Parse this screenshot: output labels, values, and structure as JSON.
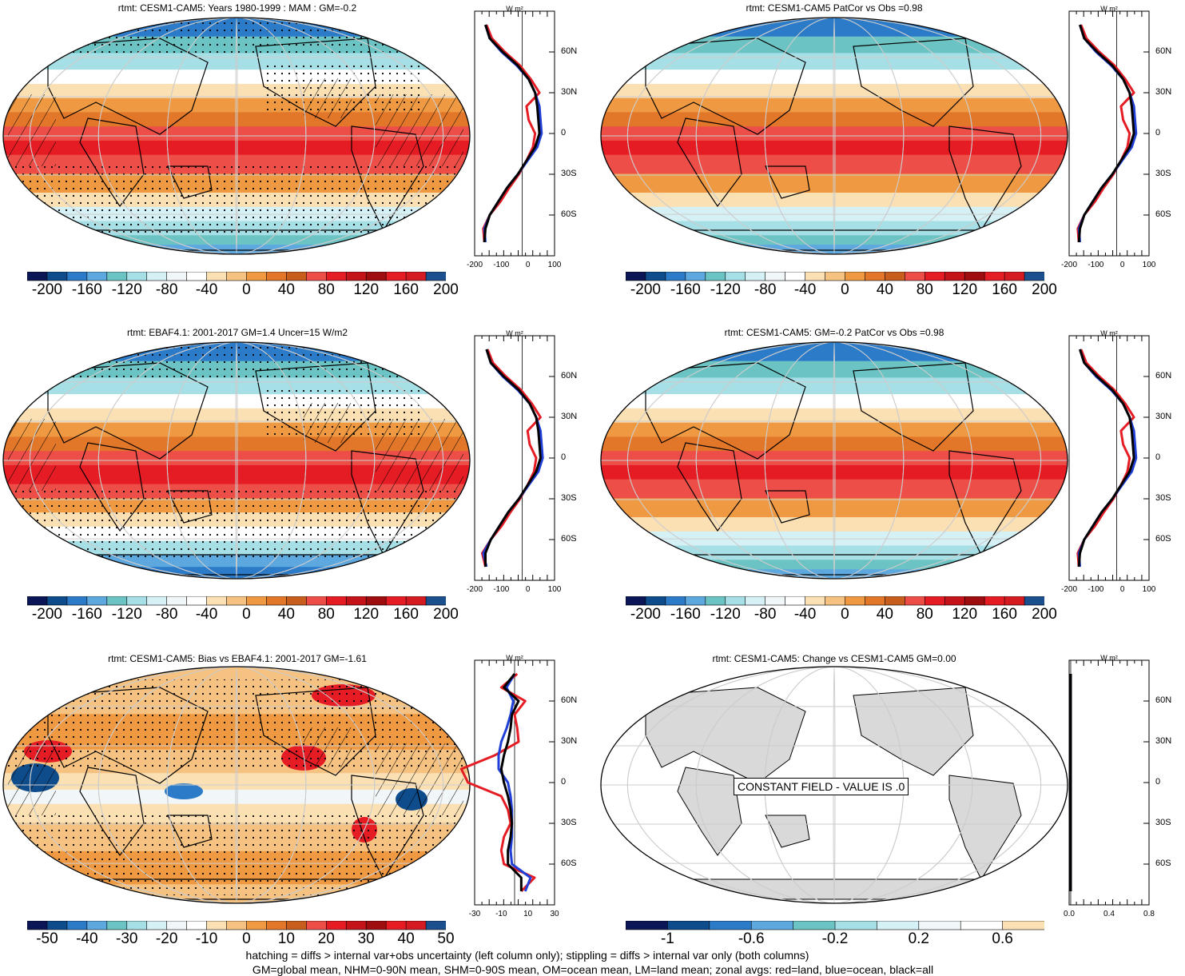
{
  "panels": [
    {
      "id": "p1",
      "title": "rtmt: CESM1-CAM5: Years 1980-1999 : MAM : GM=-0.2",
      "type": "model",
      "hatch": true,
      "stipple": true,
      "zonal_x_ticks": [
        "-200",
        "-100",
        "0",
        "100"
      ],
      "zonal_unit": "W m²"
    },
    {
      "id": "p2",
      "title": "rtmt: CESM1-CAM5 PatCor vs Obs =0.98",
      "type": "model",
      "hatch": false,
      "stipple": false,
      "zonal_x_ticks": [
        "-200",
        "-100",
        "0",
        "100"
      ],
      "zonal_unit": "W m²"
    },
    {
      "id": "p3",
      "title": "rtmt: EBAF4.1: 2001-2017 GM=1.4 Uncer=15 W/m2",
      "type": "obs",
      "hatch": true,
      "stipple": true,
      "zonal_x_ticks": [
        "-200",
        "-100",
        "0",
        "100"
      ],
      "zonal_unit": "W m²"
    },
    {
      "id": "p4",
      "title": "rtmt: CESM1-CAM5: GM=-0.2 PatCor vs Obs =0.98",
      "type": "model",
      "hatch": false,
      "stipple": false,
      "zonal_x_ticks": [
        "-200",
        "-100",
        "0",
        "100"
      ],
      "zonal_unit": "W m²"
    },
    {
      "id": "p5",
      "title": "rtmt: CESM1-CAM5: Bias vs EBAF4.1: 2001-2017 GM=-1.61",
      "type": "bias",
      "hatch": true,
      "stipple": true,
      "zonal_x_ticks": [
        "-30",
        "-10",
        "10",
        "30"
      ],
      "zonal_unit": "W m²"
    },
    {
      "id": "p6",
      "title": "rtmt: CESM1-CAM5: Change vs CESM1-CAM5 GM=0.00",
      "type": "constant",
      "hatch": false,
      "stipple": false,
      "zonal_x_ticks": [
        "0.0",
        "0.4",
        "0.8"
      ],
      "zonal_unit": "W m²",
      "constant_text": "CONSTANT FIELD - VALUE IS .0"
    }
  ],
  "lat_labels": [
    "60N",
    "30N",
    "0",
    "30S",
    "60S"
  ],
  "colorbars": {
    "main": {
      "labels": [
        "-200",
        "-160",
        "-120",
        "-80",
        "-40",
        "0",
        "40",
        "80",
        "120",
        "160",
        "200"
      ],
      "colors": [
        "#0b1656",
        "#0f4c8c",
        "#2b7bc9",
        "#5ea8e0",
        "#6cc3c3",
        "#a6dfe5",
        "#d6f1f6",
        "#f1f6f8",
        "#ffffff",
        "#fbe0b4",
        "#f6c281",
        "#ef9a43",
        "#e2772a",
        "#c85e1e",
        "#ee4e48",
        "#e51c24",
        "#c41419",
        "#9e0d0f",
        "#e51c24",
        "#d41b22",
        "#1c4f8e"
      ]
    },
    "bias": {
      "labels": [
        "-50",
        "-40",
        "-30",
        "-20",
        "-10",
        "0",
        "10",
        "20",
        "30",
        "40",
        "50"
      ],
      "colors": [
        "#0b1656",
        "#0f4c8c",
        "#2b7bc9",
        "#5ea8e0",
        "#6cc3c3",
        "#a6dfe5",
        "#d6f1f6",
        "#f1f6f8",
        "#ffffff",
        "#fbe0b4",
        "#f6c281",
        "#ef9a43",
        "#e2772a",
        "#c85e1e",
        "#ee4e48",
        "#e51c24",
        "#c41419",
        "#9e0d0f",
        "#e51c24",
        "#d41b22",
        "#1c4f8e"
      ]
    },
    "constant": {
      "labels": [
        "-1",
        "-0.6",
        "-0.2",
        "0.2",
        "0.6"
      ],
      "colors": [
        "#0b1656",
        "#0f4c8c",
        "#2b7bc9",
        "#5ea8e0",
        "#6cc3c3",
        "#a6dfe5",
        "#d6f1f6",
        "#f1f6f8",
        "#ffffff",
        "#fbe0b4"
      ]
    }
  },
  "footer": {
    "line1": "hatching = diffs > internal var+obs uncertainty (left column only); stippling = diffs > internal var only (both columns)",
    "line2": "GM=global mean, NHM=0-90N mean, SHM=0-90S mean, OM=ocean mean, LM=land mean; zonal avgs: red=land, blue=ocean, black=all"
  },
  "chart_data": [
    {
      "type": "heatmap",
      "title": "rtmt: CESM1-CAM5: Years 1980-1999 : MAM : GM=-0.2",
      "units": "W m-2",
      "range": [
        -200,
        200
      ],
      "zonal_lat": [
        80,
        70,
        60,
        50,
        40,
        30,
        20,
        10,
        0,
        -10,
        -20,
        -30,
        -40,
        -50,
        -60,
        -70,
        -80
      ],
      "zonal_all": [
        -170,
        -150,
        -90,
        -20,
        30,
        60,
        70,
        75,
        80,
        60,
        20,
        -20,
        -70,
        -110,
        -150,
        -170,
        -175
      ],
      "zonal_land": [
        -165,
        -140,
        -80,
        -10,
        40,
        80,
        20,
        30,
        60,
        50,
        20,
        -15,
        -60,
        -100,
        -150,
        -180,
        -175
      ],
      "zonal_ocean": [
        -170,
        -150,
        -95,
        -25,
        30,
        60,
        80,
        85,
        90,
        70,
        25,
        -20,
        -70,
        -110,
        -150,
        -175,
        -170
      ]
    },
    {
      "type": "heatmap",
      "title": "rtmt: CESM1-CAM5 PatCor vs Obs =0.98",
      "units": "W m-2",
      "range": [
        -200,
        200
      ],
      "zonal_lat": [
        80,
        70,
        60,
        50,
        40,
        30,
        20,
        10,
        0,
        -10,
        -20,
        -30,
        -40,
        -50,
        -60,
        -70,
        -80
      ],
      "zonal_all": [
        -170,
        -150,
        -90,
        -20,
        30,
        60,
        70,
        75,
        80,
        60,
        20,
        -20,
        -70,
        -110,
        -150,
        -170,
        -175
      ],
      "zonal_land": [
        -165,
        -140,
        -80,
        -10,
        40,
        80,
        20,
        30,
        60,
        50,
        20,
        -15,
        -60,
        -100,
        -150,
        -180,
        -175
      ],
      "zonal_ocean": [
        -170,
        -150,
        -95,
        -25,
        30,
        60,
        80,
        85,
        90,
        70,
        25,
        -20,
        -70,
        -110,
        -150,
        -175,
        -170
      ]
    },
    {
      "type": "heatmap",
      "title": "rtmt: EBAF4.1: 2001-2017 GM=1.4 Uncer=15 W/m2",
      "units": "W m-2",
      "range": [
        -200,
        200
      ],
      "zonal_lat": [
        80,
        70,
        60,
        50,
        40,
        30,
        20,
        10,
        0,
        -10,
        -20,
        -30,
        -40,
        -50,
        -60,
        -70,
        -80
      ],
      "zonal_all": [
        -165,
        -145,
        -85,
        -15,
        35,
        65,
        75,
        80,
        85,
        65,
        25,
        -15,
        -65,
        -105,
        -145,
        -170,
        -170
      ],
      "zonal_land": [
        -160,
        -135,
        -75,
        -5,
        45,
        85,
        25,
        35,
        65,
        55,
        25,
        -10,
        -55,
        -95,
        -145,
        -185,
        -170
      ],
      "zonal_ocean": [
        -165,
        -145,
        -90,
        -20,
        35,
        65,
        85,
        90,
        95,
        75,
        30,
        -15,
        -65,
        -105,
        -145,
        -180,
        -165
      ]
    },
    {
      "type": "heatmap",
      "title": "rtmt: CESM1-CAM5: GM=-0.2 PatCor vs Obs =0.98",
      "units": "W m-2",
      "range": [
        -200,
        200
      ],
      "zonal_lat": [
        80,
        70,
        60,
        50,
        40,
        30,
        20,
        10,
        0,
        -10,
        -20,
        -30,
        -40,
        -50,
        -60,
        -70,
        -80
      ],
      "zonal_all": [
        -170,
        -150,
        -90,
        -20,
        30,
        60,
        70,
        75,
        80,
        60,
        20,
        -20,
        -70,
        -110,
        -150,
        -170,
        -175
      ],
      "zonal_land": [
        -165,
        -140,
        -80,
        -10,
        40,
        80,
        20,
        30,
        60,
        50,
        20,
        -15,
        -60,
        -100,
        -150,
        -180,
        -175
      ],
      "zonal_ocean": [
        -170,
        -150,
        -95,
        -25,
        30,
        60,
        80,
        85,
        90,
        70,
        25,
        -20,
        -70,
        -110,
        -150,
        -175,
        -170
      ]
    },
    {
      "type": "heatmap",
      "title": "rtmt: CESM1-CAM5: Bias vs EBAF4.1: 2001-2017 GM=-1.61",
      "units": "W m-2",
      "range": [
        -50,
        50
      ],
      "zonal_lat": [
        80,
        70,
        60,
        50,
        40,
        30,
        20,
        10,
        0,
        -10,
        -20,
        -30,
        -40,
        -50,
        -60,
        -70,
        -80
      ],
      "zonal_all": [
        0,
        -8,
        3,
        -2,
        -3,
        -5,
        -8,
        -10,
        -8,
        -5,
        -3,
        -2,
        -3,
        -5,
        -5,
        5,
        5
      ],
      "zonal_land": [
        2,
        -10,
        8,
        0,
        2,
        3,
        -15,
        -40,
        -35,
        -10,
        -5,
        -3,
        -8,
        -10,
        -8,
        15,
        5
      ],
      "zonal_ocean": [
        0,
        -6,
        -1,
        -3,
        -6,
        -10,
        -12,
        -12,
        -5,
        -3,
        -2,
        -2,
        -2,
        -3,
        -2,
        12,
        8
      ]
    },
    {
      "type": "heatmap",
      "title": "rtmt: CESM1-CAM5: Change vs CESM1-CAM5 GM=0.00",
      "units": "W m-2",
      "range": [
        -1,
        1
      ],
      "zonal_lat": [
        80,
        0,
        -80
      ],
      "zonal_all": [
        0,
        0,
        0
      ],
      "zonal_land": [
        0,
        0,
        0
      ],
      "zonal_ocean": [
        0,
        0,
        0
      ]
    }
  ]
}
